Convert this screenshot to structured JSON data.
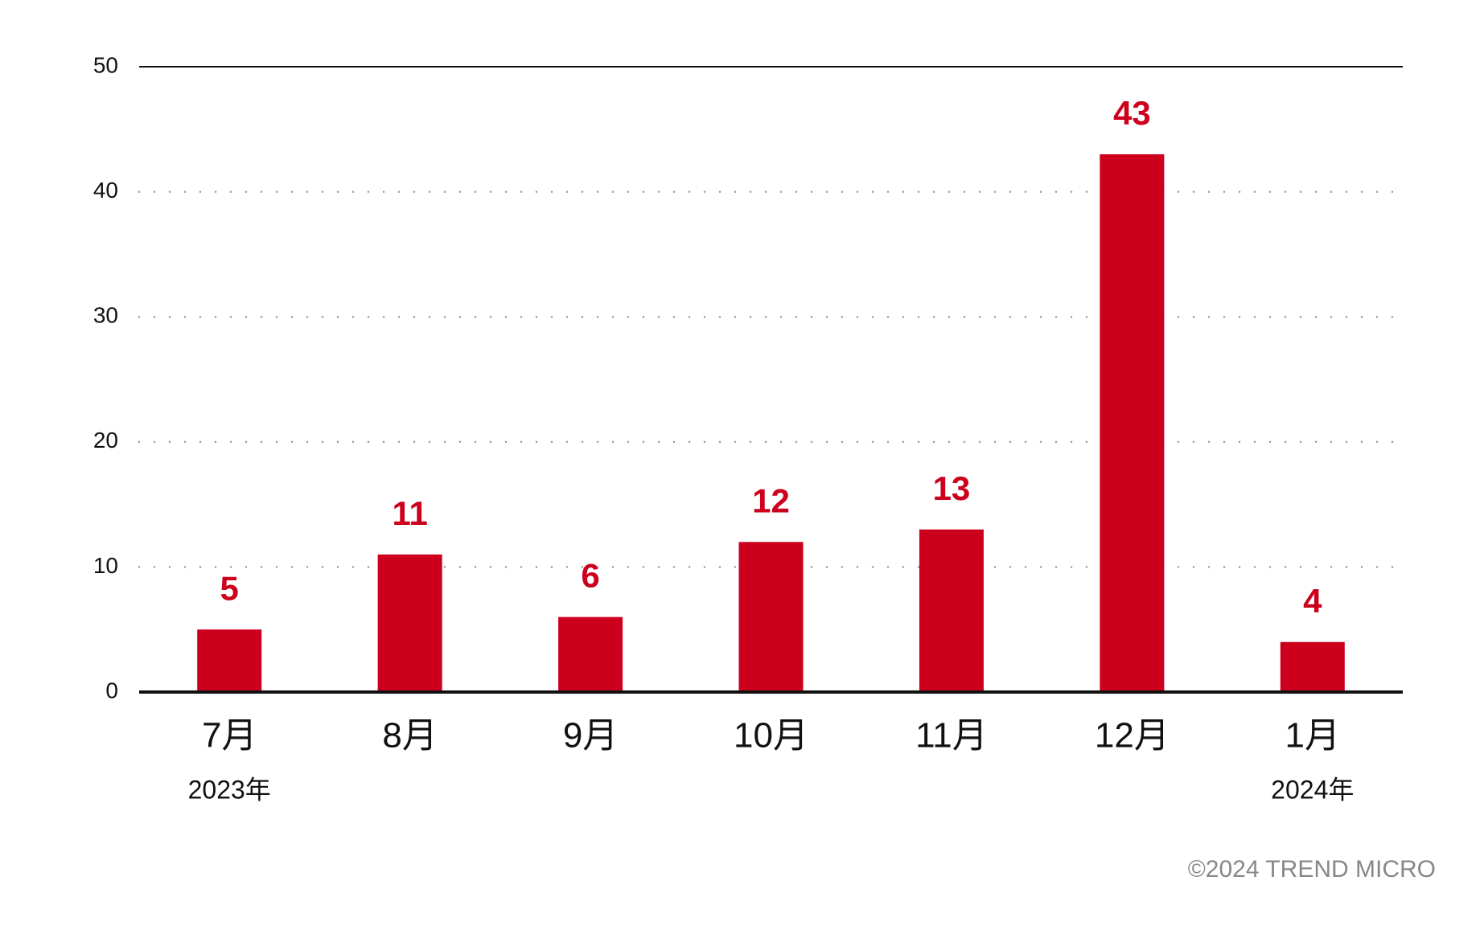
{
  "chart_data": {
    "type": "bar",
    "categories": [
      "7月",
      "8月",
      "9月",
      "10月",
      "11月",
      "12月",
      "1月"
    ],
    "year_labels": [
      "2023年",
      null,
      null,
      null,
      null,
      null,
      "2024年"
    ],
    "values": [
      5,
      11,
      6,
      12,
      13,
      43,
      4
    ],
    "color": "#cc001c",
    "ylim": [
      0,
      50
    ],
    "yticks": [
      0,
      10,
      20,
      30,
      40,
      50
    ],
    "grid": true,
    "credit": "©2024 TREND MICRO"
  }
}
